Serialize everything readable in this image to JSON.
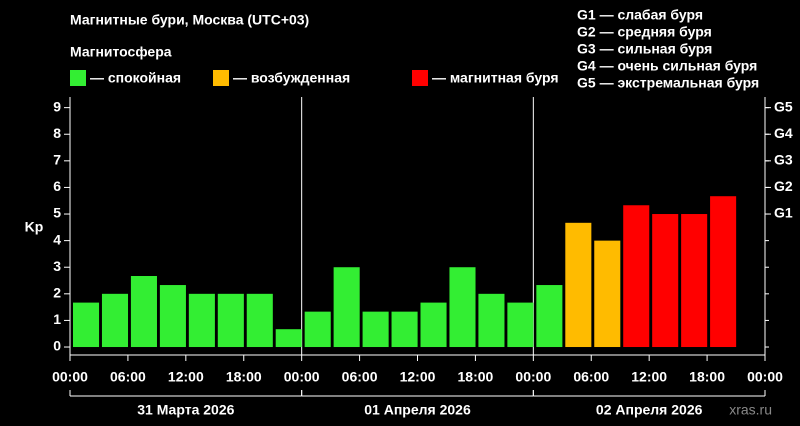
{
  "chart_data": {
    "type": "bar",
    "title": "Магнитные бури, Москва (UTC+03)",
    "subtitle": "Магнитосфера",
    "ylabel": "Kp",
    "legend": [
      {
        "name": "— спокойная",
        "color": "#33ee33"
      },
      {
        "name": "— возбужденная",
        "color": "#ffbb00"
      },
      {
        "name": "— магнитная буря",
        "color": "#ff0000"
      }
    ],
    "storm_legend": [
      "G1 — слабая буря",
      "G2 — средняя буря",
      "G3 — сильная буря",
      "G4 — очень сильная буря",
      "G5 — экстремальная буря"
    ],
    "days": [
      "31 Марта 2026",
      "01 Апреля 2026",
      "02 Апреля 2026"
    ],
    "watermark": "xras.ru",
    "x": [
      0,
      3,
      6,
      9,
      12,
      15,
      18,
      21,
      24,
      27,
      30,
      33,
      36,
      39,
      42,
      45,
      48,
      51,
      54,
      57,
      60,
      63,
      66,
      69
    ],
    "values": [
      1.67,
      2,
      2.67,
      2.33,
      2,
      2,
      2,
      0.67,
      1.33,
      3,
      1.33,
      1.33,
      1.67,
      3,
      2,
      1.67,
      2.33,
      4.67,
      4,
      5.33,
      5,
      5,
      5.67,
      null
    ],
    "colors": [
      "#33ee33",
      "#33ee33",
      "#33ee33",
      "#33ee33",
      "#33ee33",
      "#33ee33",
      "#33ee33",
      "#33ee33",
      "#33ee33",
      "#33ee33",
      "#33ee33",
      "#33ee33",
      "#33ee33",
      "#33ee33",
      "#33ee33",
      "#33ee33",
      "#33ee33",
      "#ffbb00",
      "#ffbb00",
      "#ff0000",
      "#ff0000",
      "#ff0000",
      "#ff0000",
      null
    ],
    "bar_width": 2.7,
    "xlim": [
      0,
      72
    ],
    "xticks": [
      {
        "value": 0,
        "label": "00:00"
      },
      {
        "value": 6,
        "label": "06:00"
      },
      {
        "value": 12,
        "label": "12:00"
      },
      {
        "value": 18,
        "label": "18:00"
      },
      {
        "value": 24,
        "label": "00:00"
      },
      {
        "value": 30,
        "label": "06:00"
      },
      {
        "value": 36,
        "label": "12:00"
      },
      {
        "value": 42,
        "label": "18:00"
      },
      {
        "value": 48,
        "label": "00:00"
      },
      {
        "value": 54,
        "label": "06:00"
      },
      {
        "value": 60,
        "label": "12:00"
      },
      {
        "value": 66,
        "label": "18:00"
      },
      {
        "value": 72,
        "label": "00:00"
      }
    ],
    "ylim": [
      -0.3,
      9.4
    ],
    "yticks": [
      0,
      1,
      2,
      3,
      4,
      5,
      6,
      7,
      8,
      9
    ],
    "y2lim": [
      -0.3,
      9.4
    ],
    "y2ticks": [
      {
        "value": 5,
        "label": "G1"
      },
      {
        "value": 6,
        "label": "G2"
      },
      {
        "value": 7,
        "label": "G3"
      },
      {
        "value": 8,
        "label": "G4"
      },
      {
        "value": 9,
        "label": "G5"
      }
    ]
  }
}
